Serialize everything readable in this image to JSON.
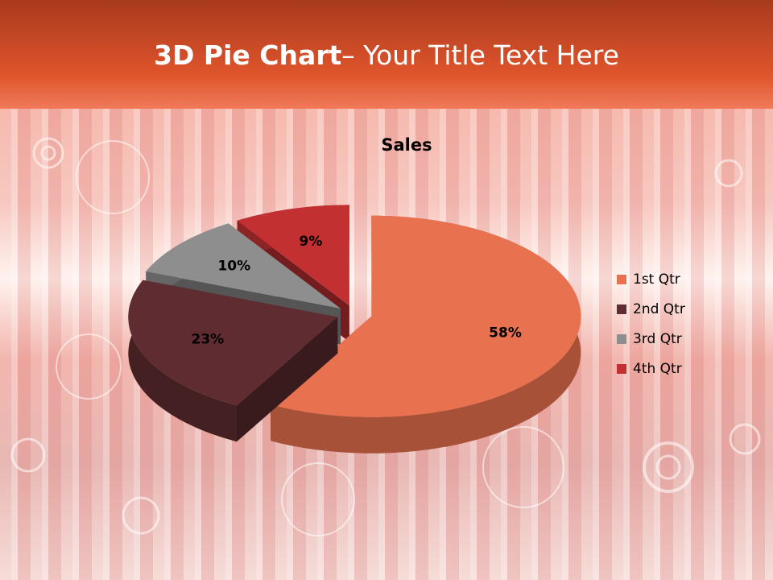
{
  "slide": {
    "title_bold": "3D Pie Chart",
    "title_rest": "– Your Title Text Here"
  },
  "chart_data": {
    "type": "pie",
    "title": "Sales",
    "categories": [
      "1st Qtr",
      "2nd Qtr",
      "3rd Qtr",
      "4th Qtr"
    ],
    "values": [
      58,
      23,
      10,
      9
    ],
    "value_labels": [
      "58%",
      "23%",
      "10%",
      "9%"
    ],
    "colors": [
      "#e8714f",
      "#5f2d31",
      "#8e8e8e",
      "#c33032"
    ],
    "legend": "right"
  }
}
